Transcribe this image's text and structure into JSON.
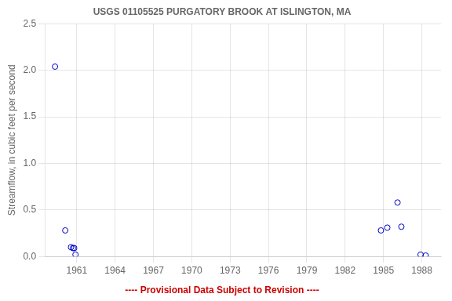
{
  "chart_data": {
    "type": "scatter",
    "title": "USGS 01105525 PURGATORY BROOK AT ISLINGTON, MA",
    "y_label": "Streamflow, in cubic feet per second",
    "annotations": [
      {
        "text": "---- Provisional Data Subject to Revision ----",
        "color": "#cc0000"
      }
    ],
    "x": [
      1959.3,
      1960.1,
      1960.55,
      1960.7,
      1960.8,
      1960.9,
      1984.8,
      1985.3,
      1986.1,
      1986.4,
      1987.9,
      1988.3
    ],
    "values": [
      2.04,
      0.28,
      0.1,
      0.09,
      0.09,
      0.02,
      0.28,
      0.31,
      0.58,
      0.32,
      0.02,
      0.01
    ],
    "color": "#0000CC",
    "marker": "open_circle",
    "xlim": [
      1958.5,
      1989.5
    ],
    "ylim": [
      0,
      2.5
    ],
    "xticks": [
      1961,
      1964,
      1967,
      1970,
      1973,
      1976,
      1979,
      1982,
      1985,
      1988
    ],
    "yticks": [
      {
        "value": 0.0,
        "label": "0.0"
      },
      0.5,
      {
        "value": 1.0,
        "label": "1.0"
      },
      1.5,
      {
        "value": 2.0,
        "label": "2.0"
      },
      2.5
    ],
    "grid": true
  }
}
